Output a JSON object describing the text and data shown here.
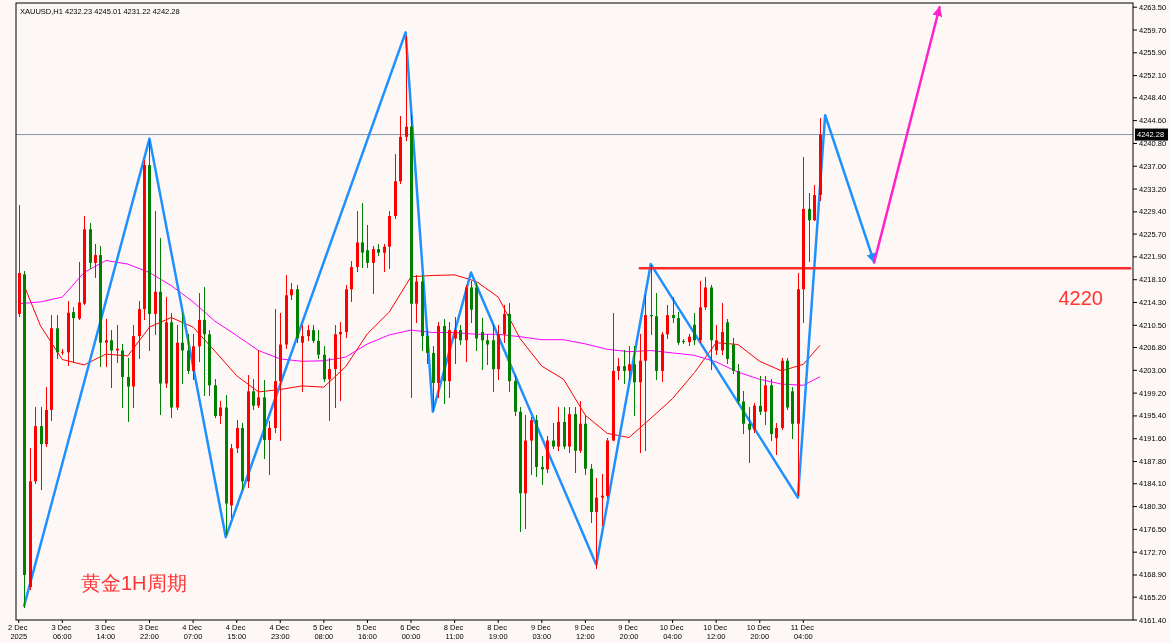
{
  "chart_data": {
    "type": "candlestick",
    "title": "XAUUSD,H1 4232.23 4245.01 4231.22 4242.28",
    "categories": [
      "2 Dec 2025",
      null,
      null,
      null,
      null,
      null,
      null,
      null,
      "3 Dec 06:00",
      null,
      null,
      null,
      null,
      null,
      null,
      null,
      "3 Dec 14:00",
      null,
      null,
      null,
      null,
      null,
      null,
      null,
      "3 Dec 22:00",
      null,
      null,
      null,
      null,
      null,
      null,
      null,
      "4 Dec 07:00",
      null,
      null,
      null,
      null,
      null,
      null,
      null,
      "4 Dec 15:00",
      null,
      null,
      null,
      null,
      null,
      null,
      null,
      "4 Dec 23:00",
      null,
      null,
      null,
      null,
      null,
      null,
      null,
      "5 Dec 08:00",
      null,
      null,
      null,
      null,
      null,
      null,
      null,
      "5 Dec 16:00",
      null,
      null,
      null,
      null,
      null,
      null,
      null,
      "6 Dec 00:00",
      null,
      null,
      null,
      null,
      null,
      null,
      null,
      "8 Dec 11:00",
      null,
      null,
      null,
      null,
      null,
      null,
      null,
      "8 Dec 19:00",
      null,
      null,
      null,
      null,
      null,
      null,
      null,
      "9 Dec 03:00",
      null,
      null,
      null,
      null,
      null,
      null,
      null,
      "9 Dec 12:00",
      null,
      null,
      null,
      null,
      null,
      null,
      null,
      "9 Dec 20:00",
      null,
      null,
      null,
      null,
      null,
      null,
      null,
      "10 Dec 04:00",
      null,
      null,
      null,
      null,
      null,
      null,
      null,
      "10 Dec 12:00",
      null,
      null,
      null,
      null,
      null,
      null,
      null,
      "10 Dec 20:00",
      null,
      null,
      null,
      null,
      null,
      null,
      null,
      "11 Dec 04:00",
      null,
      null,
      null,
      null,
      null,
      null,
      null,
      null,
      null,
      null,
      null,
      null,
      null,
      null,
      null,
      null,
      null,
      null,
      null,
      null,
      null,
      null,
      null,
      null,
      null,
      null,
      null,
      null,
      null,
      null,
      null,
      null,
      null,
      null,
      null,
      null,
      null,
      null,
      null,
      null,
      null,
      null,
      null,
      null,
      null,
      null,
      null,
      null,
      null,
      null,
      null,
      null,
      null,
      null,
      null,
      null,
      null,
      null,
      null,
      null
    ],
    "ohlc": [
      [
        4212.4,
        4230.4,
        4212.0,
        4219.2
      ],
      [
        4219.0,
        4219.5,
        4163.5,
        4168.9
      ],
      [
        4166.9,
        4190.0,
        4166.5,
        4184.5
      ],
      [
        4184.5,
        4196.8,
        4184.2,
        4193.7
      ],
      [
        4193.7,
        4196.8,
        4183.2,
        4190.7
      ],
      [
        4190.7,
        4200.2,
        4190.3,
        4196.4
      ],
      [
        4196.4,
        4212.1,
        4194.7,
        4210.0
      ],
      [
        4210.0,
        4212.1,
        4204.9,
        4206.0
      ],
      [
        4206.0,
        4206.4,
        4205.7,
        4206.1
      ],
      [
        4206.0,
        4214.5,
        4203.8,
        4212.6
      ],
      [
        4212.7,
        4213.4,
        4204.3,
        4211.7
      ],
      [
        4211.6,
        4220.9,
        4211.4,
        4214.3
      ],
      [
        4214.1,
        4228.6,
        4213.9,
        4226.5
      ],
      [
        4226.5,
        4227.5,
        4219.9,
        4220.9
      ],
      [
        4220.9,
        4223.9,
        4218.5,
        4222.2
      ],
      [
        4222.2,
        4223.6,
        4203.6,
        4207.6
      ],
      [
        4207.6,
        4211.4,
        4203.6,
        4208.0
      ],
      [
        4208.0,
        4209.7,
        4200.2,
        4206.3
      ],
      [
        4206.3,
        4210.4,
        4204.3,
        4206.6
      ],
      [
        4206.3,
        4207.3,
        4196.8,
        4201.9
      ],
      [
        4201.9,
        4204.9,
        4194.4,
        4200.3
      ],
      [
        4200.3,
        4210.4,
        4196.8,
        4208.7
      ],
      [
        4208.7,
        4214.4,
        4204.9,
        4213.2
      ],
      [
        4213.2,
        4237.9,
        4211.4,
        4237.2
      ],
      [
        4237.2,
        4241.3,
        4206.3,
        4212.4
      ],
      [
        4212.4,
        4229.4,
        4209.0,
        4216.1
      ],
      [
        4216.1,
        4225.0,
        4195.7,
        4200.8
      ],
      [
        4200.8,
        4215.1,
        4200.2,
        4211.0
      ],
      [
        4211.0,
        4212.4,
        4195.1,
        4196.8
      ],
      [
        4196.8,
        4210.4,
        4196.4,
        4207.6
      ],
      [
        4207.6,
        4212.4,
        4200.8,
        4206.3
      ],
      [
        4206.3,
        4209.0,
        4202.5,
        4202.9
      ],
      [
        4202.9,
        4209.0,
        4201.5,
        4207.0
      ],
      [
        4207.0,
        4215.8,
        4204.5,
        4211.4
      ],
      [
        4211.4,
        4216.8,
        4198.8,
        4209.0
      ],
      [
        4209.0,
        4209.7,
        4198.8,
        4200.5
      ],
      [
        4200.5,
        4201.5,
        4195.1,
        4195.4
      ],
      [
        4195.4,
        4197.8,
        4194.1,
        4196.8
      ],
      [
        4196.8,
        4198.8,
        4175.7,
        4180.8
      ],
      [
        4180.5,
        4190.7,
        4178.4,
        4190.0
      ],
      [
        4190.0,
        4194.7,
        4189.3,
        4193.4
      ],
      [
        4193.4,
        4194.1,
        4183.2,
        4184.5
      ],
      [
        4184.5,
        4202.2,
        4183.5,
        4199.5
      ],
      [
        4199.5,
        4201.5,
        4196.4,
        4197.1
      ],
      [
        4197.1,
        4206.3,
        4196.8,
        4198.5
      ],
      [
        4198.5,
        4201.3,
        4188.3,
        4191.4
      ],
      [
        4191.4,
        4194.4,
        4185.6,
        4193.4
      ],
      [
        4193.4,
        4213.1,
        4192.7,
        4201.2
      ],
      [
        4201.2,
        4212.4,
        4191.3,
        4207.3
      ],
      [
        4207.3,
        4218.8,
        4206.7,
        4215.5
      ],
      [
        4215.5,
        4217.5,
        4214.8,
        4216.5
      ],
      [
        4216.5,
        4217.2,
        4207.6,
        4208.3
      ],
      [
        4207.6,
        4210.4,
        4199.5,
        4208.7
      ],
      [
        4208.7,
        4210.4,
        4208.0,
        4209.7
      ],
      [
        4209.7,
        4210.4,
        4207.6,
        4207.9
      ],
      [
        4207.9,
        4209.7,
        4204.9,
        4205.6
      ],
      [
        4205.6,
        4207.0,
        4201.2,
        4201.5
      ],
      [
        4201.5,
        4205.0,
        4194.7,
        4203.2
      ],
      [
        4203.2,
        4210.4,
        4196.8,
        4209.0
      ],
      [
        4209.0,
        4211.0,
        4198.0,
        4209.4
      ],
      [
        4209.4,
        4217.2,
        4208.5,
        4216.5
      ],
      [
        4216.5,
        4221.2,
        4214.4,
        4220.2
      ],
      [
        4220.2,
        4229.4,
        4219.5,
        4224.3
      ],
      [
        4224.3,
        4230.8,
        4220.2,
        4222.6
      ],
      [
        4223.0,
        4227.1,
        4220.2,
        4220.9
      ],
      [
        4220.9,
        4223.6,
        4215.8,
        4223.2
      ],
      [
        4223.2,
        4224.0,
        4222.2,
        4222.6
      ],
      [
        4222.6,
        4224.0,
        4219.5,
        4223.6
      ],
      [
        4223.6,
        4229.4,
        4219.9,
        4228.7
      ],
      [
        4228.7,
        4238.9,
        4228.3,
        4234.5
      ],
      [
        4234.5,
        4245.3,
        4234.1,
        4241.9
      ],
      [
        4241.9,
        4258.6,
        4241.3,
        4243.6
      ],
      [
        4243.6,
        4245.7,
        4198.5,
        4214.1
      ],
      [
        4214.1,
        4218.8,
        4211.0,
        4217.8
      ],
      [
        4217.8,
        4218.8,
        4206.3,
        4208.7
      ],
      [
        4208.7,
        4209.7,
        4204.2,
        4205.9
      ],
      [
        4205.9,
        4207.0,
        4196.3,
        4200.9
      ],
      [
        4200.9,
        4211.0,
        4198.5,
        4210.4
      ],
      [
        4210.4,
        4211.4,
        4197.5,
        4201.2
      ],
      [
        4201.2,
        4211.0,
        4198.5,
        4209.7
      ],
      [
        4208.3,
        4211.8,
        4204.2,
        4209.7
      ],
      [
        4209.7,
        4210.4,
        4207.3,
        4208.0
      ],
      [
        4208.0,
        4217.2,
        4204.5,
        4216.8
      ],
      [
        4216.8,
        4217.8,
        4211.0,
        4213.1
      ],
      [
        4216.8,
        4217.5,
        4206.3,
        4208.3
      ],
      [
        4209.4,
        4211.7,
        4203.2,
        4208.0
      ],
      [
        4208.0,
        4209.0,
        4204.0,
        4207.3
      ],
      [
        4208.0,
        4210.4,
        4199.5,
        4203.2
      ],
      [
        4203.2,
        4210.4,
        4201.5,
        4209.0
      ],
      [
        4209.0,
        4213.8,
        4207.6,
        4212.4
      ],
      [
        4212.4,
        4214.1,
        4199.5,
        4201.2
      ],
      [
        4201.2,
        4202.2,
        4195.4,
        4196.1
      ],
      [
        4196.1,
        4196.8,
        4176.1,
        4182.5
      ],
      [
        4182.5,
        4195.4,
        4176.7,
        4191.3
      ],
      [
        4191.3,
        4195.1,
        4185.6,
        4194.7
      ],
      [
        4194.7,
        4195.4,
        4185.3,
        4186.9
      ],
      [
        4186.9,
        4188.6,
        4184.0,
        4186.5
      ],
      [
        4186.5,
        4192.0,
        4185.9,
        4191.3
      ],
      [
        4191.3,
        4194.1,
        4190.0,
        4190.3
      ],
      [
        4190.3,
        4196.8,
        4189.6,
        4194.4
      ],
      [
        4194.4,
        4196.8,
        4189.9,
        4190.3
      ],
      [
        4190.3,
        4196.8,
        4189.3,
        4195.7
      ],
      [
        4195.7,
        4196.8,
        4186.0,
        4189.6
      ],
      [
        4189.6,
        4197.8,
        4189.3,
        4194.1
      ],
      [
        4194.1,
        4195.4,
        4185.6,
        4186.6
      ],
      [
        4186.6,
        4187.3,
        4177.7,
        4179.4
      ],
      [
        4179.4,
        4184.9,
        4170.0,
        4181.8
      ],
      [
        4181.8,
        4185.6,
        4177.1,
        4182.1
      ],
      [
        4182.1,
        4191.7,
        4181.8,
        4191.3
      ],
      [
        4191.3,
        4212.4,
        4191.3,
        4202.9
      ],
      [
        4202.9,
        4204.9,
        4201.5,
        4203.7
      ],
      [
        4203.7,
        4206.3,
        4200.8,
        4202.9
      ],
      [
        4202.9,
        4207.0,
        4201.5,
        4204.0
      ],
      [
        4204.0,
        4207.0,
        4195.4,
        4201.0
      ],
      [
        4201.0,
        4209.0,
        4189.3,
        4204.6
      ],
      [
        4204.6,
        4215.5,
        4189.6,
        4212.2
      ],
      [
        4212.2,
        4220.5,
        4209.0,
        4212.0
      ],
      [
        4212.0,
        4215.8,
        4201.5,
        4202.9
      ],
      [
        4202.9,
        4209.3,
        4201.2,
        4209.0
      ],
      [
        4209.0,
        4213.8,
        4208.3,
        4212.2
      ],
      [
        4212.2,
        4215.1,
        4211.0,
        4211.7
      ],
      [
        4211.7,
        4212.7,
        4207.3,
        4207.6
      ],
      [
        4207.9,
        4208.2,
        4207.4,
        4207.7
      ],
      [
        4207.7,
        4209.0,
        4207.2,
        4208.6
      ],
      [
        4210.6,
        4212.4,
        4207.3,
        4208.0
      ],
      [
        4208.0,
        4217.8,
        4207.6,
        4213.5
      ],
      [
        4213.5,
        4218.5,
        4213.1,
        4216.8
      ],
      [
        4216.8,
        4217.1,
        4203.2,
        4208.0
      ],
      [
        4206.3,
        4210.4,
        4205.6,
        4208.0
      ],
      [
        4206.3,
        4214.1,
        4205.6,
        4209.4
      ],
      [
        4211.0,
        4211.4,
        4204.2,
        4204.9
      ],
      [
        4207.3,
        4208.3,
        4202.5,
        4202.9
      ],
      [
        4202.9,
        4203.9,
        4197.5,
        4197.8
      ],
      [
        4197.8,
        4199.5,
        4192.4,
        4194.1
      ],
      [
        4194.1,
        4196.8,
        4187.6,
        4193.1
      ],
      [
        4193.1,
        4197.4,
        4192.7,
        4197.1
      ],
      [
        4197.1,
        4201.9,
        4195.7,
        4196.1
      ],
      [
        4196.1,
        4201.9,
        4194.0,
        4200.5
      ],
      [
        4200.5,
        4201.5,
        4191.3,
        4192.4
      ],
      [
        4191.7,
        4194.1,
        4189.0,
        4193.4
      ],
      [
        4193.4,
        4204.9,
        4193.1,
        4204.6
      ],
      [
        4204.6,
        4204.9,
        4196.4,
        4196.8
      ],
      [
        4199.5,
        4200.2,
        4191.7,
        4194.1
      ],
      [
        4194.1,
        4219.2,
        4182.1,
        4216.5
      ],
      [
        4216.5,
        4238.5,
        4211.0,
        4229.9
      ],
      [
        4229.9,
        4232.4,
        4221.2,
        4228.0
      ],
      [
        4228.0,
        4233.8,
        4228.0,
        4232.2
      ],
      [
        4232.23,
        4245.01,
        4231.22,
        4242.28
      ],
      null,
      null,
      null,
      null,
      null,
      null,
      null,
      null,
      null,
      null,
      null,
      null,
      null,
      null,
      null,
      null,
      null,
      null,
      null,
      null,
      null,
      null,
      null,
      null,
      null,
      null,
      null,
      null,
      null,
      null,
      null,
      null,
      null,
      null,
      null,
      null,
      null,
      null,
      null,
      null,
      null,
      null,
      null,
      null,
      null,
      null,
      null,
      null,
      null,
      null,
      null,
      null,
      null,
      null,
      null,
      null,
      null
    ],
    "colors": [
      "#ff0000",
      "#008000",
      "#ff0000",
      "#ff0000",
      "#008000",
      "#ff0000",
      "#ff0000",
      "#008000",
      "#ff0000",
      "#ff0000",
      "#008000",
      "#ff0000",
      "#ff0000",
      "#008000",
      "#ff0000",
      "#008000",
      "#ff0000",
      "#008000",
      "#ff0000",
      "#008000",
      "#008000",
      "#ff0000",
      "#ff0000",
      "#ff0000",
      "#008000",
      "#ff0000",
      "#008000",
      "#ff0000",
      "#008000",
      "#ff0000",
      "#008000",
      "#008000",
      "#ff0000",
      "#ff0000",
      "#008000",
      "#008000",
      "#008000",
      "#ff0000",
      "#008000",
      "#ff0000",
      "#ff0000",
      "#008000",
      "#ff0000",
      "#008000",
      "#ff0000",
      "#008000",
      "#ff0000",
      "#ff0000",
      "#ff0000",
      "#ff0000",
      "#ff0000",
      "#008000",
      "#ff0000",
      "#ff0000",
      "#008000",
      "#008000",
      "#008000",
      "#ff0000",
      "#ff0000",
      "#ff0000",
      "#ff0000",
      "#ff0000",
      "#ff0000",
      "#008000",
      "#008000",
      "#ff0000",
      "#008000",
      "#ff0000",
      "#ff0000",
      "#ff0000",
      "#ff0000",
      "#ff0000",
      "#008000",
      "#ff0000",
      "#008000",
      "#008000",
      "#008000",
      "#ff0000",
      "#008000",
      "#ff0000",
      "#ff0000",
      "#008000",
      "#ff0000",
      "#008000",
      "#008000",
      "#008000",
      "#008000",
      "#008000",
      "#ff0000",
      "#ff0000",
      "#008000",
      "#008000",
      "#008000",
      "#ff0000",
      "#ff0000",
      "#008000",
      "#008000",
      "#ff0000",
      "#008000",
      "#ff0000",
      "#008000",
      "#ff0000",
      "#008000",
      "#ff0000",
      "#008000",
      "#008000",
      "#ff0000",
      "#ff0000",
      "#ff0000",
      "#ff0000",
      "#ff0000",
      "#008000",
      "#ff0000",
      "#008000",
      "#ff0000",
      "#ff0000",
      "#008000",
      "#008000",
      "#ff0000",
      "#ff0000",
      "#008000",
      "#008000",
      "#008000",
      "#ff0000",
      "#008000",
      "#ff0000",
      "#ff0000",
      "#008000",
      "#ff0000",
      "#ff0000",
      "#008000",
      "#008000",
      "#008000",
      "#008000",
      "#008000",
      "#ff0000",
      "#008000",
      "#ff0000",
      "#008000",
      "#ff0000",
      "#ff0000",
      "#008000",
      "#008000",
      "#ff0000",
      "#ff0000",
      "#008000",
      "#ff0000",
      "#ff0000",
      null,
      null,
      null,
      null,
      null,
      null,
      null,
      null,
      null,
      null,
      null,
      null,
      null,
      null,
      null,
      null,
      null,
      null,
      null,
      null,
      null,
      null,
      null,
      null,
      null,
      null,
      null,
      null,
      null,
      null,
      null,
      null,
      null,
      null,
      null,
      null,
      null,
      null,
      null,
      null,
      null,
      null,
      null,
      null,
      null,
      null,
      null,
      null,
      null,
      null,
      null,
      null,
      null,
      null,
      null,
      null,
      null
    ],
    "series": [
      {
        "type": "line",
        "color": "#ff0000",
        "values": [
          null,
          4217.1,
          null,
          null,
          4210.4,
          null,
          null,
          null,
          4204.8,
          null,
          null,
          null,
          4203.9,
          null,
          null,
          null,
          4205.7,
          null,
          null,
          null,
          4205.4,
          null,
          null,
          null,
          4210.2,
          null,
          null,
          null,
          4211.8,
          null,
          null,
          null,
          4210.2,
          null,
          null,
          null,
          4206.2,
          null,
          null,
          null,
          4202.1,
          null,
          null,
          null,
          4199.4,
          null,
          null,
          null,
          4199.8,
          null,
          null,
          null,
          4200.4,
          null,
          null,
          null,
          4200.2,
          null,
          null,
          null,
          4203.6,
          null,
          null,
          null,
          4209.1,
          null,
          null,
          null,
          4212.7,
          null,
          null,
          null,
          4218.6,
          null,
          null,
          null,
          4218.8,
          null,
          null,
          null,
          4218.9,
          null,
          null,
          null,
          4217.8,
          null,
          null,
          null,
          4215.2,
          null,
          null,
          null,
          4208.3,
          null,
          null,
          null,
          4203.7,
          null,
          null,
          null,
          4201.5,
          null,
          null,
          null,
          4195.5,
          null,
          null,
          null,
          4192.5,
          null,
          null,
          null,
          4191.8,
          null,
          null,
          null,
          4195.0,
          null,
          null,
          null,
          4198.3,
          null,
          null,
          null,
          4202.6,
          null,
          null,
          null,
          4207.6,
          null,
          null,
          null,
          4207.3,
          null,
          null,
          null,
          4204.5,
          null,
          null,
          null,
          4202.9,
          null,
          null,
          null,
          4204.0,
          null,
          null,
          4207.1,
          null,
          null,
          null,
          null,
          null,
          null,
          null,
          null,
          null,
          null,
          null,
          null,
          null,
          null,
          null,
          null,
          null,
          null,
          null,
          null,
          null,
          null,
          null,
          null,
          null,
          null,
          null,
          null,
          null,
          null,
          null,
          null,
          null,
          null,
          null,
          null,
          null,
          null,
          null,
          null,
          null,
          null,
          null,
          null,
          null,
          null,
          null,
          null,
          null,
          null,
          null,
          null,
          null,
          null,
          null,
          null,
          null
        ]
      },
      {
        "type": "line",
        "color": "#ff00ff",
        "values": [
          4214.1,
          null,
          null,
          null,
          4214.4,
          null,
          null,
          null,
          4215.2,
          null,
          null,
          null,
          4219.3,
          null,
          null,
          null,
          4221.3,
          null,
          null,
          null,
          4220.7,
          null,
          null,
          null,
          4219.3,
          null,
          null,
          null,
          4217.1,
          null,
          null,
          null,
          4214.4,
          null,
          null,
          null,
          4211.2,
          null,
          null,
          null,
          4208.8,
          null,
          null,
          null,
          4206.3,
          null,
          null,
          null,
          4204.9,
          null,
          null,
          null,
          4204.5,
          null,
          null,
          null,
          4204.6,
          null,
          null,
          null,
          4205.2,
          null,
          null,
          null,
          4207.4,
          null,
          null,
          null,
          4208.9,
          null,
          null,
          null,
          4209.7,
          null,
          null,
          null,
          4209.3,
          null,
          null,
          null,
          4209.3,
          null,
          null,
          null,
          4209.0,
          null,
          null,
          null,
          4209.0,
          null,
          null,
          null,
          4208.6,
          null,
          null,
          null,
          4208.1,
          null,
          null,
          null,
          4208.1,
          null,
          null,
          null,
          4207.4,
          null,
          null,
          null,
          4206.5,
          null,
          null,
          null,
          4206.1,
          null,
          null,
          null,
          4206.3,
          null,
          null,
          null,
          4205.9,
          null,
          null,
          null,
          4205.5,
          null,
          null,
          null,
          4204.4,
          null,
          null,
          null,
          4202.7,
          null,
          null,
          null,
          4201.5,
          null,
          null,
          null,
          4200.7,
          null,
          null,
          null,
          4200.5,
          null,
          null,
          4201.9,
          null,
          null,
          null,
          null,
          null,
          null,
          null,
          null,
          null,
          null,
          null,
          null,
          null,
          null,
          null,
          null,
          null,
          null,
          null,
          null,
          null,
          null,
          null,
          null,
          null,
          null,
          null,
          null,
          null,
          null,
          null,
          null,
          null,
          null,
          null,
          null,
          null,
          null,
          null,
          null,
          null,
          null,
          null,
          null,
          null,
          null,
          null,
          null,
          null,
          null,
          null,
          null,
          null,
          null,
          null,
          null,
          null
        ]
      },
      {
        "type": "line",
        "color": "#1e90ff",
        "values": [
          null,
          4163.8,
          null,
          null,
          null,
          null,
          null,
          null,
          null,
          null,
          null,
          null,
          null,
          null,
          null,
          null,
          null,
          null,
          null,
          null,
          null,
          null,
          null,
          null,
          4241.6,
          null,
          null,
          null,
          null,
          null,
          null,
          null,
          null,
          null,
          null,
          null,
          null,
          null,
          4175.2,
          null,
          null,
          null,
          null,
          null,
          null,
          null,
          null,
          null,
          null,
          null,
          null,
          null,
          null,
          null,
          null,
          null,
          null,
          null,
          null,
          null,
          null,
          null,
          null,
          null,
          null,
          null,
          null,
          null,
          null,
          null,
          null,
          4259.3,
          null,
          null,
          null,
          null,
          4196.1,
          null,
          null,
          null,
          null,
          null,
          null,
          4219.3,
          null,
          null,
          null,
          null,
          null,
          null,
          null,
          null,
          null,
          null,
          null,
          null,
          null,
          null,
          null,
          null,
          null,
          null,
          null,
          null,
          null,
          null,
          4170.6,
          null,
          null,
          null,
          null,
          null,
          null,
          null,
          null,
          null,
          4220.7,
          null,
          null,
          null,
          null,
          null,
          null,
          null,
          null,
          null,
          null,
          null,
          null,
          null,
          null,
          null,
          null,
          null,
          null,
          null,
          null,
          null,
          null,
          null,
          null,
          null,
          null,
          4181.8,
          null,
          null,
          null,
          null,
          4245.5,
          null,
          null,
          null,
          null,
          null,
          null,
          null,
          null,
          4221.0,
          null,
          null,
          null,
          null,
          null,
          null,
          null,
          null,
          null,
          null,
          null,
          null,
          null,
          null,
          null,
          null,
          null,
          null,
          null,
          null,
          null,
          null,
          null,
          null,
          null,
          null,
          null,
          null,
          null,
          null,
          null,
          null,
          null,
          null,
          null,
          null,
          null,
          null,
          null,
          null,
          null,
          null,
          null,
          null,
          null,
          null,
          null
        ]
      },
      {
        "type": "line",
        "color": "#ff22cc",
        "values": [
          null,
          null,
          null,
          null,
          null,
          null,
          null,
          null,
          null,
          null,
          null,
          null,
          null,
          null,
          null,
          null,
          null,
          null,
          null,
          null,
          null,
          null,
          null,
          null,
          null,
          null,
          null,
          null,
          null,
          null,
          null,
          null,
          null,
          null,
          null,
          null,
          null,
          null,
          null,
          null,
          null,
          null,
          null,
          null,
          null,
          null,
          null,
          null,
          null,
          null,
          null,
          null,
          null,
          null,
          null,
          null,
          null,
          null,
          null,
          null,
          null,
          null,
          null,
          null,
          null,
          null,
          null,
          null,
          null,
          null,
          null,
          null,
          null,
          null,
          null,
          null,
          null,
          null,
          null,
          null,
          null,
          null,
          null,
          null,
          null,
          null,
          null,
          null,
          null,
          null,
          null,
          null,
          null,
          null,
          null,
          null,
          null,
          null,
          null,
          null,
          null,
          null,
          null,
          null,
          null,
          null,
          null,
          null,
          null,
          null,
          null,
          null,
          null,
          null,
          null,
          null,
          null,
          null,
          null,
          null,
          null,
          null,
          null,
          null,
          null,
          null,
          null,
          null,
          null,
          null,
          null,
          null,
          null,
          null,
          null,
          null,
          null,
          null,
          null,
          null,
          null,
          null,
          null,
          null,
          null,
          null,
          null,
          null,
          null,
          null,
          null,
          null,
          null,
          null,
          null,
          null,
          null,
          4221.0,
          null,
          null,
          null,
          null,
          null,
          null,
          null,
          null,
          null,
          null,
          null,
          4263.5,
          null,
          null,
          null,
          null,
          null,
          null,
          null,
          null,
          null,
          null,
          null,
          null,
          null,
          null,
          null,
          null,
          null,
          null,
          null,
          null,
          null,
          null,
          null,
          null,
          null,
          null,
          null,
          null,
          null,
          null,
          null,
          null,
          null,
          null,
          null
        ]
      },
      {
        "type": "line",
        "color": "#ff2a2a",
        "values": [
          null,
          null,
          null,
          null,
          null,
          null,
          null,
          null,
          null,
          null,
          null,
          null,
          null,
          null,
          null,
          null,
          null,
          null,
          null,
          null,
          null,
          null,
          null,
          null,
          null,
          null,
          null,
          null,
          null,
          null,
          null,
          null,
          null,
          null,
          null,
          null,
          null,
          null,
          null,
          null,
          null,
          null,
          null,
          null,
          null,
          null,
          null,
          null,
          null,
          null,
          null,
          null,
          null,
          null,
          null,
          null,
          null,
          null,
          null,
          null,
          null,
          null,
          null,
          null,
          null,
          null,
          null,
          null,
          null,
          null,
          null,
          null,
          null,
          null,
          null,
          null,
          null,
          null,
          null,
          null,
          null,
          null,
          null,
          null,
          null,
          null,
          null,
          null,
          null,
          null,
          null,
          null,
          null,
          null,
          null,
          null,
          null,
          null,
          null,
          null,
          null,
          null,
          null,
          null,
          null,
          null,
          null,
          null,
          null,
          null,
          null,
          null,
          null,
          null,
          4220,
          null,
          null,
          null,
          null,
          null,
          null,
          null,
          null,
          null,
          null,
          null,
          null,
          null,
          null,
          null,
          null,
          null,
          null,
          null,
          null,
          null,
          null,
          null,
          null,
          null,
          null,
          null,
          null,
          null,
          null,
          null,
          null,
          null,
          null,
          null,
          null,
          null,
          null,
          null,
          null,
          null,
          null,
          null,
          null,
          null,
          null,
          null,
          null,
          null,
          null,
          null,
          null,
          null,
          null,
          null,
          null,
          null,
          null,
          null,
          null,
          null,
          null,
          null,
          null,
          null,
          null,
          null,
          null,
          null,
          null,
          null,
          null,
          null,
          null,
          null,
          null,
          null,
          null,
          null,
          null,
          null,
          null,
          null,
          null,
          null,
          null,
          null,
          null,
          null,
          4220
        ]
      }
    ],
    "ref_lines": [
      {
        "axis": "y",
        "value": 4242.28,
        "label": "4242.28",
        "color": "#8496aa"
      }
    ],
    "annotations": [
      {
        "text": "4220",
        "y": 4220
      },
      "黄金1H周期"
    ],
    "ylim": [
      4161.4,
      4264.2
    ],
    "yticks": [
      {
        "value": 4161.4,
        "label": "4161.40"
      },
      {
        "value": 4165.2,
        "label": "4165.20"
      },
      {
        "value": 4168.9,
        "label": "4168.90"
      },
      {
        "value": 4172.7,
        "label": "4172.70"
      },
      {
        "value": 4176.5,
        "label": "4176.50"
      },
      {
        "value": 4180.3,
        "label": "4180.30"
      },
      {
        "value": 4184.1,
        "label": "4184.10"
      },
      {
        "value": 4187.8,
        "label": "4187.80"
      },
      {
        "value": 4191.6,
        "label": "4191.60"
      },
      {
        "value": 4195.4,
        "label": "4195.40"
      },
      {
        "value": 4199.2,
        "label": "4199.20"
      },
      {
        "value": 4203.0,
        "label": "4203.00"
      },
      {
        "value": 4206.8,
        "label": "4206.80"
      },
      {
        "value": 4210.5,
        "label": "4210.50"
      },
      {
        "value": 4214.3,
        "label": "4214.30"
      },
      {
        "value": 4218.1,
        "label": "4218.10"
      },
      {
        "value": 4221.9,
        "label": "4221.90"
      },
      {
        "value": 4225.7,
        "label": "4225.70"
      },
      {
        "value": 4229.4,
        "label": "4229.40"
      },
      {
        "value": 4233.2,
        "label": "4233.20"
      },
      {
        "value": 4237.0,
        "label": "4237.00"
      },
      {
        "value": 4240.8,
        "label": "4240.80"
      },
      {
        "value": 4244.6,
        "label": "4244.60"
      },
      {
        "value": 4248.4,
        "label": "4248.40"
      },
      {
        "value": 4252.1,
        "label": "4252.10"
      },
      {
        "value": 4255.9,
        "label": "4255.90"
      },
      {
        "value": 4259.7,
        "label": "4259.70"
      },
      {
        "value": 4263.5,
        "label": "4263.50"
      }
    ]
  }
}
